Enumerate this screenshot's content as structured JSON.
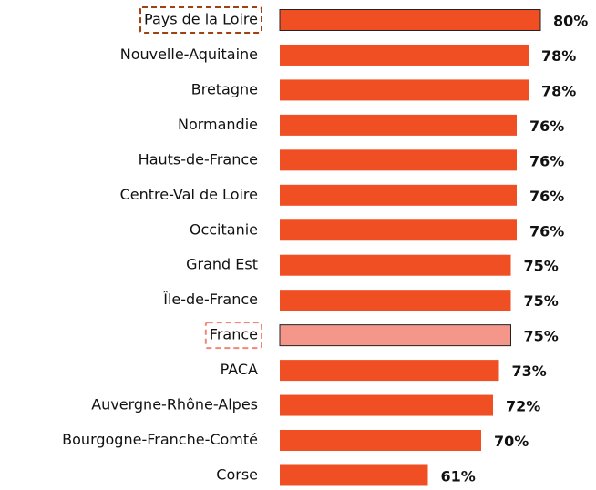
{
  "chart_data": {
    "type": "barh",
    "categories": [
      "Pays de la Loire",
      "Nouvelle-Aquitaine",
      "Bretagne",
      "Normandie",
      "Hauts-de-France",
      "Centre-Val de Loire",
      "Occitanie",
      "Grand Est",
      "Île-de-France",
      "France",
      "PACA",
      "Auvergne-Rhône-Alpes",
      "Bourgogne-Franche-Comté",
      "Corse"
    ],
    "values": [
      80,
      78,
      78,
      76,
      76,
      76,
      76,
      75,
      75,
      75,
      73,
      72,
      70,
      61
    ],
    "value_labels": [
      "80%",
      "78%",
      "78%",
      "76%",
      "76%",
      "76%",
      "76%",
      "75%",
      "75%",
      "75%",
      "73%",
      "72%",
      "70%",
      "61%"
    ],
    "colors": [
      "#f04e23",
      "#f04e23",
      "#f04e23",
      "#f04e23",
      "#f04e23",
      "#f04e23",
      "#f04e23",
      "#f04e23",
      "#f04e23",
      "#f4968a",
      "#f04e23",
      "#f04e23",
      "#f04e23",
      "#f04e23"
    ],
    "label_frames": [
      "#a0420f",
      null,
      null,
      null,
      null,
      null,
      null,
      null,
      null,
      "#f08878",
      null,
      null,
      null,
      null
    ],
    "outlined": [
      "Pays de la Loire",
      "France"
    ],
    "xlim": [
      36,
      80
    ]
  }
}
